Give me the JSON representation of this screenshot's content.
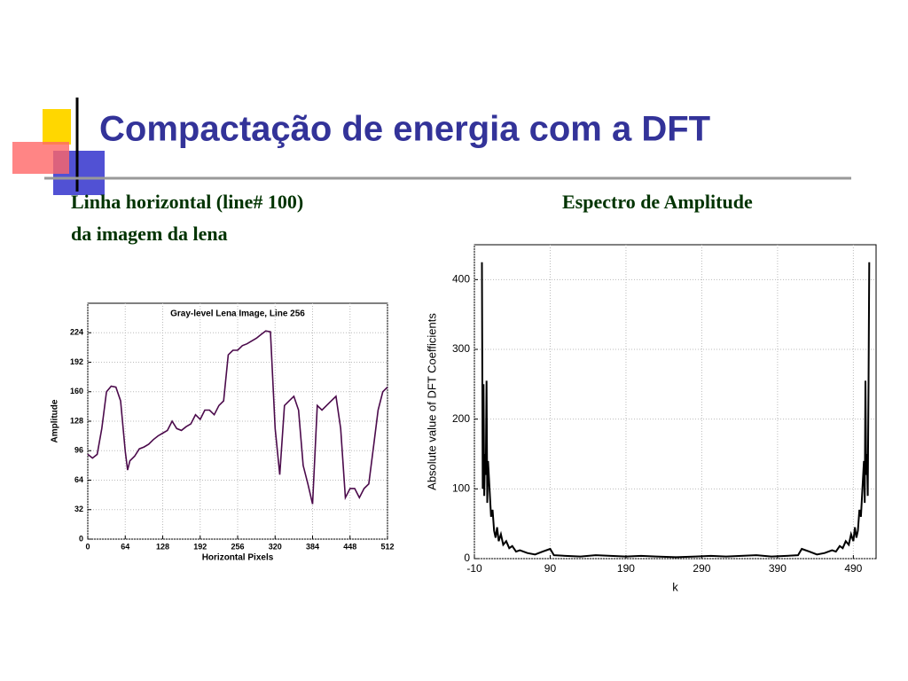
{
  "title": "Compactação de energia com a  DFT",
  "left_caption": [
    "Linha horizontal  (line# 100)",
    "da imagem da lena"
  ],
  "right_caption": "Espectro de Amplitude",
  "chart_data": [
    {
      "type": "line",
      "title": "Gray-level Lena Image, Line 256",
      "xlabel": "Horizontal Pixels",
      "ylabel": "Amplitude",
      "x": [
        0,
        8,
        16,
        24,
        32,
        40,
        48,
        56,
        64,
        68,
        72,
        80,
        88,
        96,
        104,
        112,
        120,
        128,
        136,
        144,
        152,
        160,
        168,
        176,
        184,
        192,
        200,
        208,
        216,
        224,
        232,
        240,
        248,
        256,
        264,
        272,
        280,
        288,
        296,
        304,
        312,
        320,
        328,
        336,
        344,
        352,
        360,
        368,
        376,
        384,
        392,
        400,
        408,
        416,
        424,
        432,
        440,
        448,
        456,
        464,
        472,
        480,
        488,
        496,
        504,
        512
      ],
      "values": [
        92,
        88,
        92,
        120,
        160,
        166,
        165,
        150,
        95,
        75,
        85,
        90,
        98,
        100,
        103,
        108,
        112,
        115,
        118,
        128,
        120,
        118,
        122,
        125,
        135,
        130,
        140,
        140,
        135,
        145,
        150,
        200,
        205,
        205,
        210,
        212,
        215,
        218,
        222,
        226,
        225,
        120,
        70,
        145,
        150,
        155,
        140,
        80,
        60,
        38,
        145,
        140,
        145,
        150,
        155,
        120,
        45,
        55,
        55,
        45,
        55,
        60,
        100,
        140,
        160,
        165
      ],
      "color": "#4b0a4b",
      "xlim": [
        0,
        512
      ],
      "ylim": [
        0,
        256
      ],
      "xticks": [
        0,
        64,
        128,
        192,
        256,
        320,
        384,
        448,
        512
      ],
      "yticks": [
        0,
        32,
        64,
        96,
        128,
        160,
        192,
        224
      ],
      "grid": true
    },
    {
      "type": "line",
      "xlabel": "k",
      "ylabel": "Absolute value of DFT Coefficients",
      "x": [
        0,
        1,
        2,
        3,
        4,
        5,
        6,
        7,
        8,
        10,
        12,
        14,
        16,
        18,
        20,
        22,
        25,
        28,
        32,
        36,
        40,
        45,
        50,
        60,
        70,
        80,
        90,
        95,
        110,
        130,
        150,
        170,
        190,
        210,
        230,
        256,
        282,
        302,
        322,
        342,
        362,
        382,
        402,
        417,
        422,
        432,
        442,
        452,
        462,
        467,
        472,
        476,
        480,
        484,
        487,
        490,
        492,
        494,
        496,
        498,
        500,
        502,
        504,
        505,
        506,
        507,
        508,
        509,
        510,
        511
      ],
      "values": [
        425,
        100,
        250,
        90,
        150,
        120,
        255,
        80,
        140,
        100,
        60,
        70,
        40,
        30,
        45,
        25,
        35,
        20,
        25,
        15,
        18,
        10,
        12,
        8,
        6,
        10,
        14,
        5,
        4,
        3,
        5,
        4,
        3,
        4,
        3,
        2,
        3,
        4,
        3,
        4,
        5,
        3,
        4,
        5,
        14,
        10,
        6,
        8,
        12,
        10,
        18,
        15,
        25,
        20,
        35,
        25,
        45,
        30,
        40,
        70,
        60,
        100,
        140,
        80,
        255,
        120,
        150,
        90,
        250,
        425
      ],
      "color": "#000000",
      "xlim": [
        -10,
        520
      ],
      "ylim": [
        0,
        450
      ],
      "xticks": [
        -10,
        90,
        190,
        290,
        390,
        490
      ],
      "yticks": [
        0,
        100,
        200,
        300,
        400
      ],
      "grid": true
    }
  ]
}
